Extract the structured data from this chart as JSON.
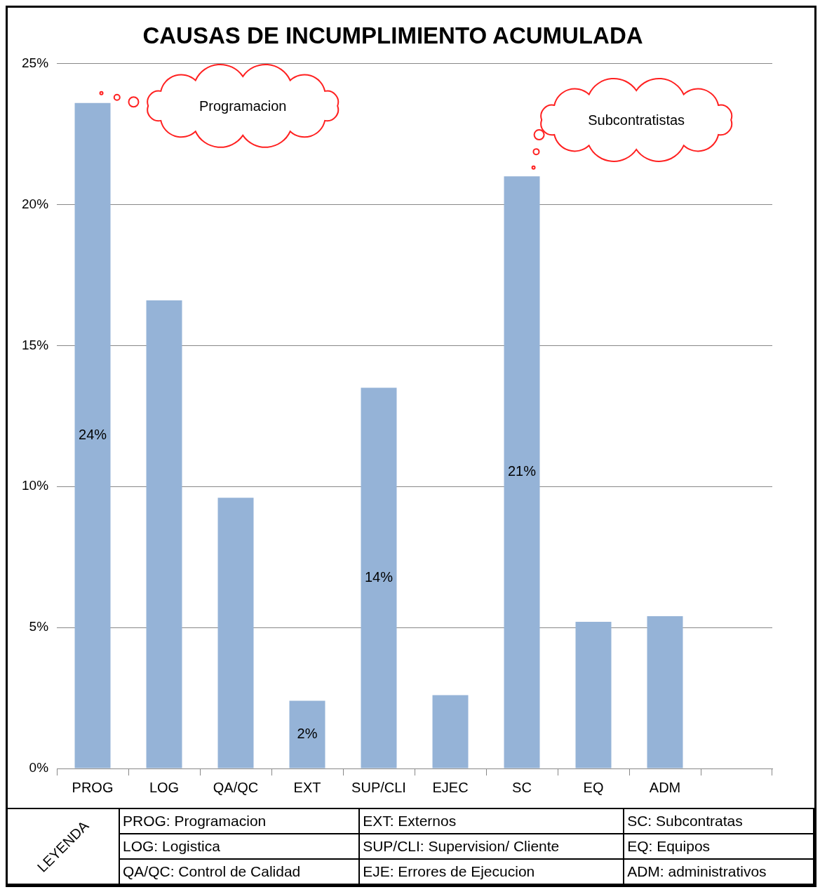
{
  "chart_data": {
    "type": "bar",
    "title": "CAUSAS DE INCUMPLIMIENTO ACUMULADA",
    "categories": [
      "PROG",
      "LOG",
      "QA/QC",
      "EXT",
      "SUP/CLI",
      "EJEC",
      "SC",
      "EQ",
      "ADM",
      null
    ],
    "values": [
      23.6,
      16.6,
      9.6,
      2.4,
      13.5,
      2.6,
      21.0,
      5.2,
      5.4,
      null
    ],
    "value_labels": [
      "24%",
      null,
      null,
      "2%",
      "14%",
      null,
      "21%",
      null,
      null,
      null
    ],
    "color": "#95b3d7",
    "ylim": [
      0,
      25
    ],
    "yticks": [
      {
        "value": 0,
        "label": "0%"
      },
      {
        "value": 5,
        "label": "5%"
      },
      {
        "value": 10,
        "label": "10%"
      },
      {
        "value": 15,
        "label": "15%"
      },
      {
        "value": 20,
        "label": "20%"
      },
      {
        "value": 25,
        "label": "25%"
      }
    ],
    "grid": "y",
    "annotations": [
      "Programacion",
      "Subcontratistas",
      "LEYENDA",
      "PROG: Programacion",
      "LOG: Logistica",
      "QA/QC: Control de Calidad",
      "EXT: Externos",
      "SUP/CLI: Supervision/ Cliente",
      "EJE: Errores de Ejecucion",
      "SC: Subcontratas",
      "EQ: Equipos",
      "ADM: administrativos"
    ]
  }
}
